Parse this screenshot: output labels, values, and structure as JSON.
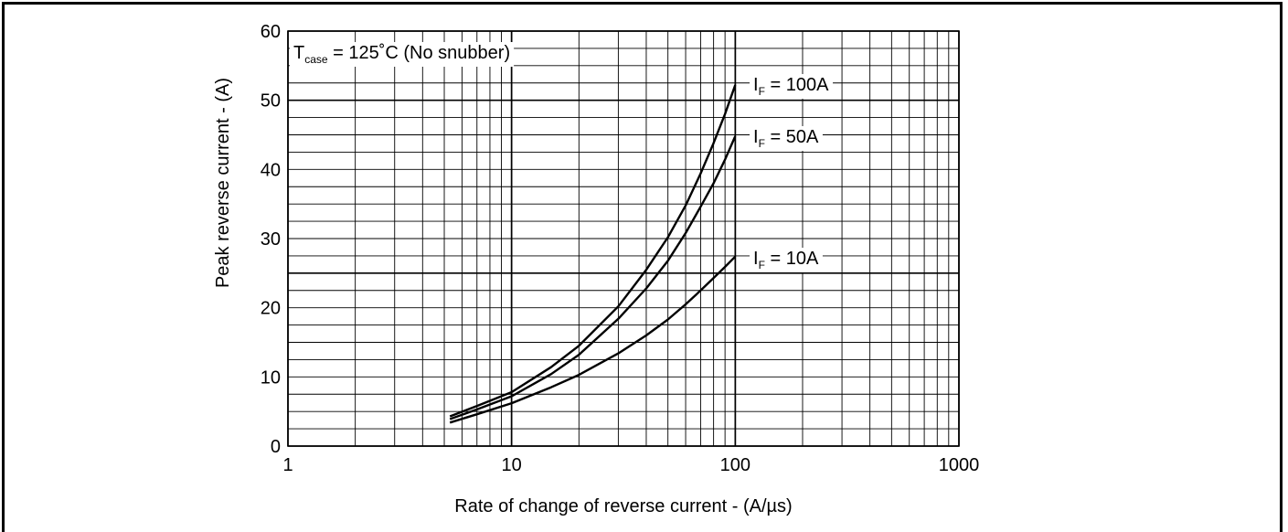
{
  "chart_data": {
    "type": "line",
    "title": "",
    "xlabel": "Rate of change of reverse current - (A/µs)",
    "ylabel": "Peak reverse current - (A)",
    "x_scale": "log",
    "xlim": [
      1,
      1000
    ],
    "ylim": [
      0,
      60
    ],
    "x_ticks": [
      "1",
      "10",
      "100",
      "1000"
    ],
    "y_ticks": [
      "0",
      "10",
      "20",
      "30",
      "40",
      "50",
      "60"
    ],
    "grid": true,
    "condition": {
      "symbol": "T",
      "subscript": "case",
      "text": " = 125˚C (No snubber)"
    },
    "series": [
      {
        "name": "I_F = 100A",
        "label": {
          "symbol": "I",
          "subscript": "F",
          "text": " = 100A"
        },
        "x": [
          5.3,
          7,
          10,
          15,
          20,
          30,
          40,
          50,
          60,
          70,
          80,
          90,
          100
        ],
        "y": [
          4.3,
          5.8,
          7.8,
          11.4,
          14.5,
          20.2,
          25.5,
          30.2,
          34.8,
          39.4,
          43.8,
          48.0,
          52.2
        ]
      },
      {
        "name": "I_F = 50A",
        "label": {
          "symbol": "I",
          "subscript": "F",
          "text": " = 50A"
        },
        "x": [
          5.3,
          7,
          10,
          15,
          20,
          30,
          40,
          50,
          60,
          70,
          80,
          90,
          100
        ],
        "y": [
          3.9,
          5.3,
          7.2,
          10.4,
          13.2,
          18.4,
          22.8,
          26.8,
          30.8,
          34.6,
          38.0,
          41.4,
          44.8
        ]
      },
      {
        "name": "I_F = 10A",
        "label": {
          "symbol": "I",
          "subscript": "F",
          "text": " = 10A"
        },
        "x": [
          5.3,
          7,
          10,
          15,
          20,
          30,
          40,
          50,
          60,
          70,
          80,
          90,
          100
        ],
        "y": [
          3.4,
          4.6,
          6.2,
          8.5,
          10.3,
          13.4,
          16.0,
          18.3,
          20.5,
          22.5,
          24.3,
          25.9,
          27.4
        ]
      }
    ]
  }
}
